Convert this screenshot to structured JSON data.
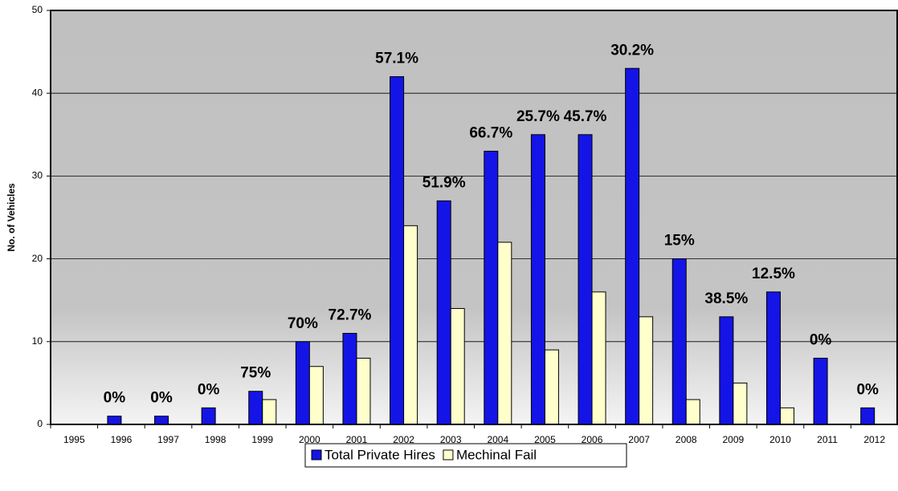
{
  "chart_data": {
    "type": "bar",
    "y_label": "No. of Vehicles",
    "categories": [
      "1995",
      "1996",
      "1997",
      "1998",
      "1999",
      "2000",
      "2001",
      "2002",
      "2003",
      "2004",
      "2005",
      "2006",
      "2007",
      "2008",
      "2009",
      "2010",
      "2011",
      "2012"
    ],
    "series": [
      {
        "name": "Total Private Hires",
        "color": "#1414e6",
        "values": [
          0,
          1,
          1,
          2,
          4,
          10,
          11,
          42,
          27,
          33,
          35,
          35,
          43,
          20,
          13,
          16,
          8,
          2
        ]
      },
      {
        "name": "Mechinal Fail",
        "color": "#ffffcc",
        "values": [
          0,
          0,
          0,
          0,
          3,
          7,
          8,
          24,
          14,
          22,
          9,
          16,
          13,
          3,
          5,
          2,
          0,
          0
        ]
      }
    ],
    "annotations": [
      null,
      "0%",
      "0%",
      "0%",
      "75%",
      "70%",
      "72.7%",
      "57.1%",
      "51.9%",
      "66.7%",
      "25.7%",
      "45.7%",
      "30.2%",
      "15%",
      "38.5%",
      "12.5%",
      "0%",
      "0%"
    ],
    "ylim": [
      0,
      50
    ],
    "yticks": [
      0,
      10,
      20,
      30,
      40,
      50
    ],
    "grid": true,
    "legend": "bottom"
  }
}
